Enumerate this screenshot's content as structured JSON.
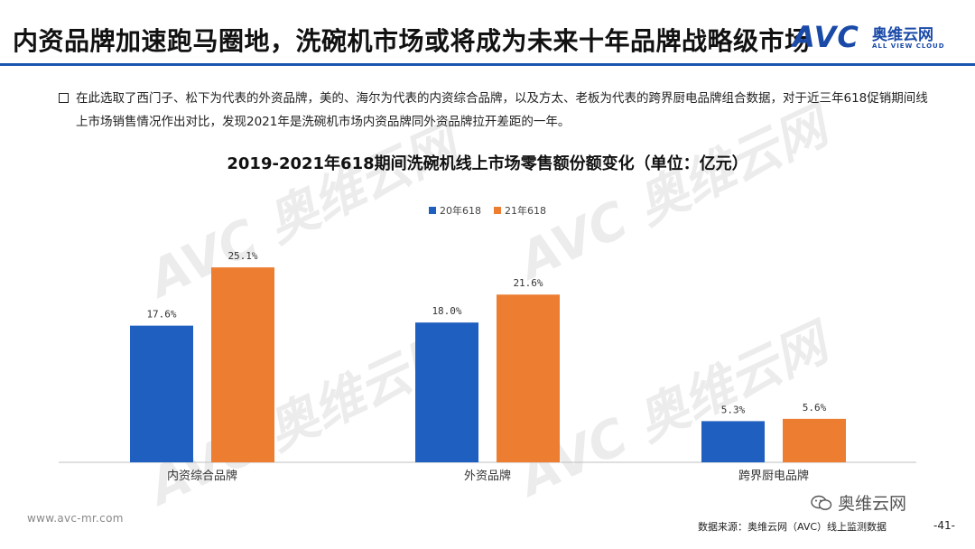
{
  "header": {
    "title": "内资品牌加速跑马圈地，洗碗机市场或将成为未来十年品牌战略级市场",
    "logo_text": "AVC",
    "logo_cn": "奥维云网",
    "logo_en": "ALL VIEW CLOUD"
  },
  "description": "在此选取了西门子、松下为代表的外资品牌，美的、海尔为代表的内资综合品牌，以及方太、老板为代表的跨界厨电品牌组合数据，对于近三年618促销期间线上市场销售情况作出对比，发现2021年是洗碗机市场内资品牌同外资品牌拉开差距的一年。",
  "chart_data": {
    "type": "bar",
    "title": "2019-2021年618期间洗碗机线上市场零售额份额变化（单位：亿元）",
    "categories": [
      "内资综合品牌",
      "外资品牌",
      "跨界厨电品牌"
    ],
    "series": [
      {
        "name": "20年618",
        "values": [
          17.6,
          18.0,
          5.3
        ],
        "labels": [
          "17.6%",
          "18.0%",
          "5.3%"
        ],
        "color": "#1f5fbf"
      },
      {
        "name": "21年618",
        "values": [
          25.1,
          21.6,
          5.6
        ],
        "labels": [
          "25.1%",
          "21.6%",
          "5.6%"
        ],
        "color": "#ed7d31"
      }
    ],
    "ylim": [
      0,
      30
    ],
    "grid": false,
    "legend_position": "top-center"
  },
  "footer": {
    "url": "www.avc-mr.com",
    "wechat": "奥维云网",
    "source": "数据来源：奥维云网（AVC）线上监测数据",
    "page": "-41-"
  },
  "watermark": {
    "text": "AVC 奥维云网",
    "subtext": "ALL VIEW CLOUD"
  }
}
